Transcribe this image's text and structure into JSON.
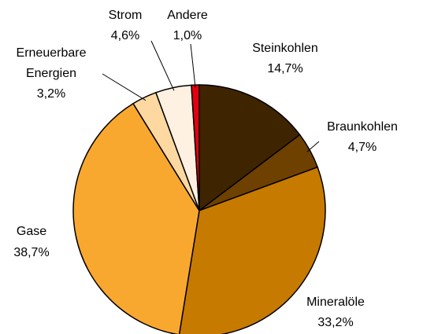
{
  "chart_data": {
    "type": "pie",
    "categories": [
      "Steinkohlen",
      "Braunkohlen",
      "Mineralöle",
      "Gase",
      "Erneuerbare Energien",
      "Strom",
      "Andere"
    ],
    "values": [
      14.7,
      4.7,
      33.2,
      38.7,
      3.2,
      4.6,
      1.0
    ],
    "value_labels": [
      "14,7%",
      "4,7%",
      "33,2%",
      "38,7%",
      "3,2%",
      "4,6%",
      "1,0%"
    ],
    "colors": [
      "#3f2400",
      "#6e4100",
      "#c77a00",
      "#f9a82f",
      "#fdd8a0",
      "#fff1e2",
      "#e3000f"
    ]
  }
}
